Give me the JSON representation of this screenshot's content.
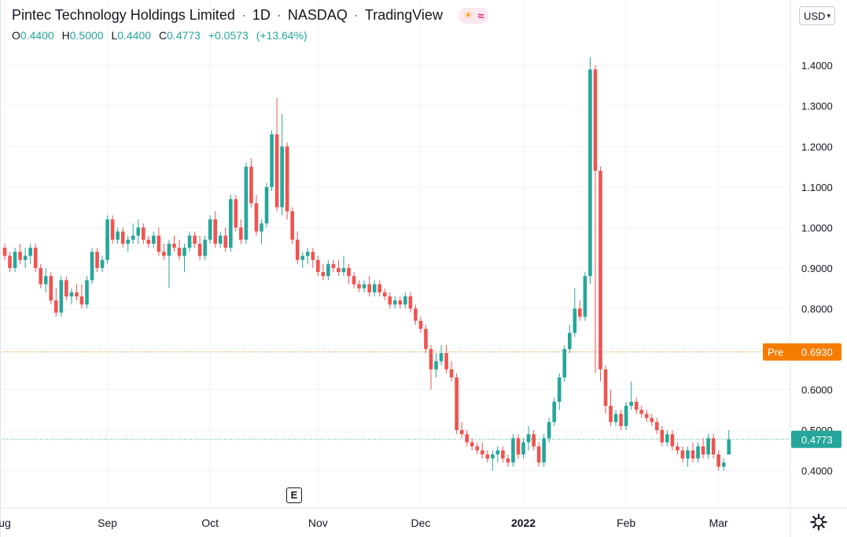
{
  "header": {
    "symbol_name": "Pintec Technology Holdings Limited",
    "interval": "1D",
    "exchange": "NASDAQ",
    "source": "TradingView",
    "ohlc": {
      "o_label": "O",
      "o": "0.4400",
      "h_label": "H",
      "h": "0.5000",
      "l_label": "L",
      "l": "0.4400",
      "c_label": "C",
      "c": "0.4773",
      "change": "+0.0573",
      "change_pct": "(+13.64%)"
    }
  },
  "currency_button": "USD",
  "earnings_marker": "E",
  "colors": {
    "up": "#26a69a",
    "down": "#ef5350",
    "pre_line": "#f57c00",
    "last_line": "#26a69a",
    "grid": "#f0f3fa",
    "text": "#131722"
  },
  "chart_data": {
    "type": "candlestick",
    "title": "Pintec Technology Holdings Limited · 1D · NASDAQ",
    "y_axis": {
      "ticks": [
        "0.4000",
        "0.5000",
        "0.6000",
        "0.7000",
        "0.8000",
        "0.9000",
        "1.0000",
        "1.1000",
        "1.2000",
        "1.3000",
        "1.4000"
      ],
      "ylim": [
        0.31,
        1.445
      ]
    },
    "x_axis": {
      "labels": [
        {
          "label": "ug",
          "index": 0
        },
        {
          "label": "Sep",
          "index": 20
        },
        {
          "label": "Oct",
          "index": 40
        },
        {
          "label": "Nov",
          "index": 61
        },
        {
          "label": "Dec",
          "index": 81
        },
        {
          "label": "2022",
          "index": 101,
          "bold": true
        },
        {
          "label": "Feb",
          "index": 121
        },
        {
          "label": "Mar",
          "index": 139
        }
      ]
    },
    "price_labels": [
      {
        "name": "Pre",
        "value": 0.693,
        "text": "0.6930",
        "style": "pre"
      },
      {
        "name": "last",
        "value": 0.4773,
        "text": "0.4773",
        "style": "last"
      }
    ],
    "earnings_index": 56,
    "candles": [
      [
        0.95,
        0.96,
        0.92,
        0.93
      ],
      [
        0.93,
        0.94,
        0.89,
        0.9
      ],
      [
        0.9,
        0.95,
        0.89,
        0.94
      ],
      [
        0.94,
        0.96,
        0.91,
        0.92
      ],
      [
        0.92,
        0.95,
        0.9,
        0.93
      ],
      [
        0.93,
        0.96,
        0.91,
        0.95
      ],
      [
        0.95,
        0.96,
        0.89,
        0.9
      ],
      [
        0.9,
        0.91,
        0.85,
        0.86
      ],
      [
        0.86,
        0.9,
        0.84,
        0.88
      ],
      [
        0.88,
        0.89,
        0.81,
        0.82
      ],
      [
        0.82,
        0.85,
        0.78,
        0.79
      ],
      [
        0.79,
        0.88,
        0.78,
        0.87
      ],
      [
        0.87,
        0.88,
        0.82,
        0.83
      ],
      [
        0.83,
        0.85,
        0.81,
        0.84
      ],
      [
        0.84,
        0.86,
        0.82,
        0.83
      ],
      [
        0.83,
        0.86,
        0.8,
        0.81
      ],
      [
        0.81,
        0.88,
        0.8,
        0.87
      ],
      [
        0.87,
        0.95,
        0.86,
        0.94
      ],
      [
        0.94,
        0.95,
        0.89,
        0.9
      ],
      [
        0.9,
        0.93,
        0.89,
        0.92
      ],
      [
        0.92,
        1.03,
        0.91,
        1.02
      ],
      [
        1.02,
        1.03,
        0.96,
        0.97
      ],
      [
        0.97,
        1.0,
        0.96,
        0.99
      ],
      [
        0.99,
        1.0,
        0.95,
        0.96
      ],
      [
        0.96,
        0.98,
        0.94,
        0.97
      ],
      [
        0.97,
        1.01,
        0.96,
        0.98
      ],
      [
        0.98,
        1.02,
        0.96,
        1.0
      ],
      [
        1.0,
        1.01,
        0.96,
        0.97
      ],
      [
        0.97,
        0.98,
        0.95,
        0.96
      ],
      [
        0.96,
        0.99,
        0.95,
        0.98
      ],
      [
        0.98,
        1.0,
        0.93,
        0.94
      ],
      [
        0.94,
        0.96,
        0.92,
        0.93
      ],
      [
        0.93,
        0.97,
        0.85,
        0.96
      ],
      [
        0.96,
        0.98,
        0.94,
        0.95
      ],
      [
        0.95,
        0.97,
        0.92,
        0.93
      ],
      [
        0.93,
        0.96,
        0.89,
        0.95
      ],
      [
        0.95,
        0.99,
        0.94,
        0.98
      ],
      [
        0.98,
        0.99,
        0.95,
        0.96
      ],
      [
        0.96,
        0.98,
        0.92,
        0.93
      ],
      [
        0.93,
        0.98,
        0.92,
        0.97
      ],
      [
        0.97,
        1.03,
        0.96,
        1.02
      ],
      [
        1.02,
        1.04,
        0.95,
        0.96
      ],
      [
        0.96,
        0.99,
        0.95,
        0.98
      ],
      [
        0.98,
        1.0,
        0.94,
        0.95
      ],
      [
        0.95,
        1.08,
        0.94,
        1.07
      ],
      [
        1.07,
        1.08,
        0.99,
        1.0
      ],
      [
        1.0,
        1.02,
        0.96,
        0.97
      ],
      [
        0.97,
        1.16,
        0.96,
        1.15
      ],
      [
        1.15,
        1.17,
        1.05,
        1.06
      ],
      [
        1.06,
        1.08,
        0.98,
        0.99
      ],
      [
        0.99,
        1.02,
        0.96,
        1.01
      ],
      [
        1.01,
        1.11,
        1.0,
        1.1
      ],
      [
        1.1,
        1.24,
        1.09,
        1.23
      ],
      [
        1.23,
        1.32,
        1.04,
        1.05
      ],
      [
        1.05,
        1.28,
        1.03,
        1.2
      ],
      [
        1.2,
        1.21,
        1.02,
        1.04
      ],
      [
        1.04,
        1.05,
        0.96,
        0.97
      ],
      [
        0.97,
        0.99,
        0.91,
        0.92
      ],
      [
        0.92,
        0.94,
        0.9,
        0.93
      ],
      [
        0.93,
        0.95,
        0.91,
        0.94
      ],
      [
        0.94,
        0.95,
        0.9,
        0.92
      ],
      [
        0.92,
        0.93,
        0.88,
        0.89
      ],
      [
        0.89,
        0.91,
        0.87,
        0.88
      ],
      [
        0.88,
        0.92,
        0.87,
        0.91
      ],
      [
        0.91,
        0.92,
        0.89,
        0.9
      ],
      [
        0.9,
        0.92,
        0.88,
        0.89
      ],
      [
        0.89,
        0.93,
        0.88,
        0.9
      ],
      [
        0.9,
        0.91,
        0.86,
        0.88
      ],
      [
        0.88,
        0.89,
        0.85,
        0.86
      ],
      [
        0.86,
        0.87,
        0.84,
        0.85
      ],
      [
        0.85,
        0.87,
        0.84,
        0.86
      ],
      [
        0.86,
        0.88,
        0.83,
        0.84
      ],
      [
        0.84,
        0.87,
        0.83,
        0.86
      ],
      [
        0.86,
        0.87,
        0.83,
        0.84
      ],
      [
        0.84,
        0.85,
        0.82,
        0.83
      ],
      [
        0.83,
        0.84,
        0.8,
        0.81
      ],
      [
        0.81,
        0.83,
        0.8,
        0.82
      ],
      [
        0.82,
        0.83,
        0.8,
        0.81
      ],
      [
        0.81,
        0.84,
        0.8,
        0.83
      ],
      [
        0.83,
        0.84,
        0.79,
        0.8
      ],
      [
        0.8,
        0.81,
        0.76,
        0.77
      ],
      [
        0.77,
        0.78,
        0.74,
        0.75
      ],
      [
        0.75,
        0.76,
        0.69,
        0.7
      ],
      [
        0.7,
        0.71,
        0.6,
        0.65
      ],
      [
        0.65,
        0.69,
        0.63,
        0.67
      ],
      [
        0.67,
        0.71,
        0.66,
        0.69
      ],
      [
        0.69,
        0.71,
        0.64,
        0.65
      ],
      [
        0.65,
        0.67,
        0.62,
        0.63
      ],
      [
        0.63,
        0.64,
        0.49,
        0.5
      ],
      [
        0.5,
        0.52,
        0.48,
        0.49
      ],
      [
        0.49,
        0.5,
        0.46,
        0.47
      ],
      [
        0.47,
        0.48,
        0.45,
        0.46
      ],
      [
        0.46,
        0.47,
        0.44,
        0.45
      ],
      [
        0.45,
        0.47,
        0.43,
        0.44
      ],
      [
        0.44,
        0.45,
        0.42,
        0.43
      ],
      [
        0.43,
        0.45,
        0.4,
        0.44
      ],
      [
        0.44,
        0.46,
        0.42,
        0.45
      ],
      [
        0.45,
        0.46,
        0.42,
        0.43
      ],
      [
        0.43,
        0.44,
        0.41,
        0.42
      ],
      [
        0.42,
        0.49,
        0.41,
        0.48
      ],
      [
        0.48,
        0.49,
        0.43,
        0.44
      ],
      [
        0.44,
        0.48,
        0.43,
        0.47
      ],
      [
        0.47,
        0.51,
        0.45,
        0.49
      ],
      [
        0.49,
        0.5,
        0.45,
        0.46
      ],
      [
        0.46,
        0.47,
        0.41,
        0.42
      ],
      [
        0.42,
        0.49,
        0.41,
        0.48
      ],
      [
        0.48,
        0.53,
        0.47,
        0.52
      ],
      [
        0.52,
        0.58,
        0.51,
        0.57
      ],
      [
        0.57,
        0.64,
        0.55,
        0.63
      ],
      [
        0.63,
        0.71,
        0.62,
        0.7
      ],
      [
        0.7,
        0.76,
        0.69,
        0.74
      ],
      [
        0.74,
        0.85,
        0.73,
        0.8
      ],
      [
        0.8,
        0.82,
        0.77,
        0.78
      ],
      [
        0.78,
        0.89,
        0.77,
        0.88
      ],
      [
        0.88,
        1.42,
        0.86,
        1.39
      ],
      [
        1.39,
        1.4,
        0.64,
        1.14
      ],
      [
        1.14,
        1.15,
        0.62,
        0.65
      ],
      [
        0.65,
        0.66,
        0.54,
        0.56
      ],
      [
        0.56,
        0.6,
        0.51,
        0.52
      ],
      [
        0.52,
        0.55,
        0.51,
        0.54
      ],
      [
        0.54,
        0.55,
        0.5,
        0.51
      ],
      [
        0.51,
        0.57,
        0.5,
        0.56
      ],
      [
        0.56,
        0.62,
        0.55,
        0.57
      ],
      [
        0.57,
        0.58,
        0.54,
        0.55
      ],
      [
        0.55,
        0.56,
        0.53,
        0.54
      ],
      [
        0.54,
        0.55,
        0.52,
        0.53
      ],
      [
        0.53,
        0.54,
        0.51,
        0.52
      ],
      [
        0.52,
        0.53,
        0.49,
        0.5
      ],
      [
        0.5,
        0.51,
        0.46,
        0.47
      ],
      [
        0.47,
        0.5,
        0.46,
        0.49
      ],
      [
        0.49,
        0.5,
        0.45,
        0.46
      ],
      [
        0.46,
        0.47,
        0.44,
        0.45
      ],
      [
        0.45,
        0.46,
        0.42,
        0.43
      ],
      [
        0.43,
        0.46,
        0.41,
        0.45
      ],
      [
        0.45,
        0.47,
        0.42,
        0.43
      ],
      [
        0.43,
        0.47,
        0.42,
        0.46
      ],
      [
        0.46,
        0.48,
        0.43,
        0.44
      ],
      [
        0.44,
        0.49,
        0.43,
        0.48
      ],
      [
        0.48,
        0.49,
        0.43,
        0.44
      ],
      [
        0.44,
        0.45,
        0.4,
        0.41
      ],
      [
        0.41,
        0.43,
        0.4,
        0.42
      ],
      [
        0.44,
        0.5,
        0.44,
        0.4773
      ]
    ]
  }
}
